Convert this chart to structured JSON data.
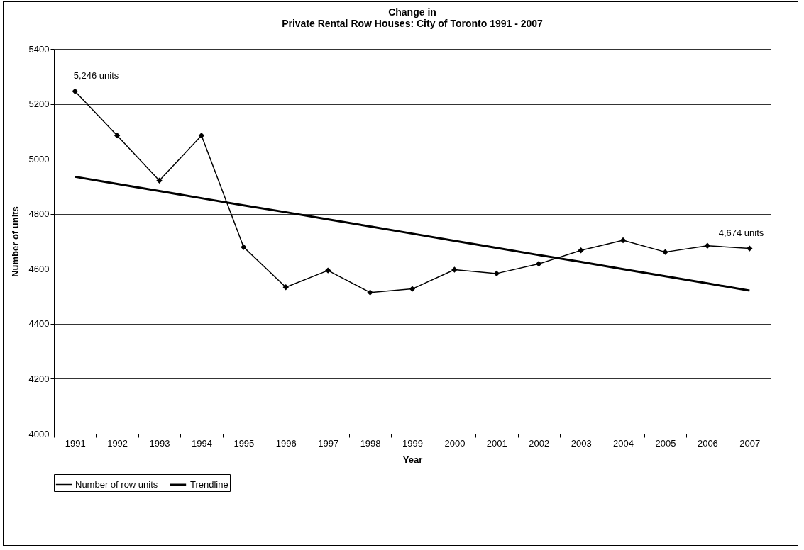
{
  "chart_data": {
    "type": "line",
    "title": "Change in\nPrivate Rental Row Houses: City of Toronto 1991 - 2007",
    "xlabel": "Year",
    "ylabel": "Number of units",
    "categories": [
      "1991",
      "1992",
      "1993",
      "1994",
      "1995",
      "1996",
      "1997",
      "1998",
      "1999",
      "2000",
      "2001",
      "2002",
      "2003",
      "2004",
      "2005",
      "2006",
      "2007"
    ],
    "series": [
      {
        "name": "Number of row units",
        "color": "#000000",
        "marker": "diamond",
        "values": [
          5246,
          5085,
          4921,
          5085,
          4679,
          4533,
          4594,
          4514,
          4527,
          4597,
          4583,
          4618,
          4667,
          4704,
          4661,
          4684,
          4674
        ]
      },
      {
        "name": "Trendline",
        "color": "#000000",
        "type": "line",
        "marker": "none",
        "values": [
          4935,
          4909,
          4883,
          4857,
          4831,
          4806,
          4780,
          4754,
          4728,
          4702,
          4676,
          4650,
          4625,
          4599,
          4573,
          4547,
          4521
        ]
      }
    ],
    "ylim": [
      4000,
      5400
    ],
    "yticks": [
      4000,
      4200,
      4400,
      4600,
      4800,
      5000,
      5200,
      5400
    ],
    "grid": "y",
    "legend": "bottom",
    "annotations": [
      {
        "text": "5,246 units",
        "x": "1991",
        "y": 5246
      },
      {
        "text": "4,674 units",
        "x": "2007",
        "y": 4674
      }
    ]
  }
}
